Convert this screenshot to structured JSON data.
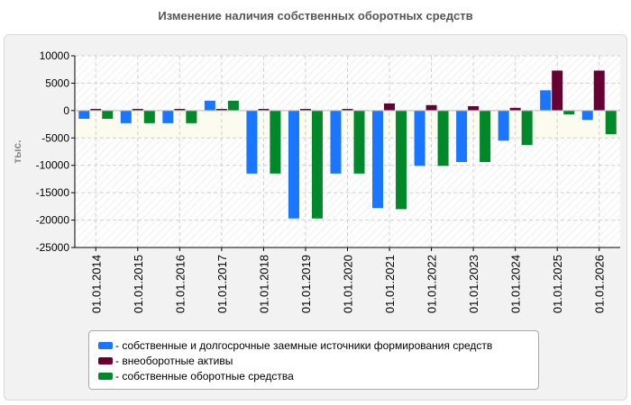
{
  "chart_data": {
    "type": "bar",
    "title": "Изменение наличия собственных оборотных средств",
    "ylabel": "тыс.",
    "ylim": [
      -25000,
      10000
    ],
    "yticks": [
      10000,
      5000,
      0,
      -5000,
      -10000,
      -15000,
      -20000,
      -25000
    ],
    "grid": true,
    "legend_position": "bottom",
    "categories": [
      "01.01.2014",
      "01.01.2015",
      "01.01.2016",
      "01.01.2017",
      "01.01.2018",
      "01.01.2019",
      "01.01.2020",
      "01.01.2021",
      "01.01.2022",
      "01.01.2023",
      "01.01.2024",
      "01.01.2025",
      "01.01.2026"
    ],
    "series": [
      {
        "name": "собственные и долгосрочные заемные источники формирования средств",
        "color": "#1a75ff",
        "values": [
          -1500,
          -2300,
          -2300,
          1800,
          -11500,
          -19700,
          -11500,
          -17800,
          -10100,
          -9400,
          -5500,
          3700,
          -1700
        ]
      },
      {
        "name": "внеоборотные активы",
        "color": "#660033",
        "values": [
          300,
          300,
          300,
          300,
          300,
          300,
          300,
          1300,
          1000,
          800,
          500,
          7300,
          7300
        ]
      },
      {
        "name": "собственные оборотные средства",
        "color": "#00882b",
        "values": [
          -1500,
          -2300,
          -2300,
          1800,
          -11500,
          -19700,
          -11500,
          -18000,
          -10100,
          -9400,
          -6300,
          -700,
          -4300
        ]
      }
    ]
  }
}
